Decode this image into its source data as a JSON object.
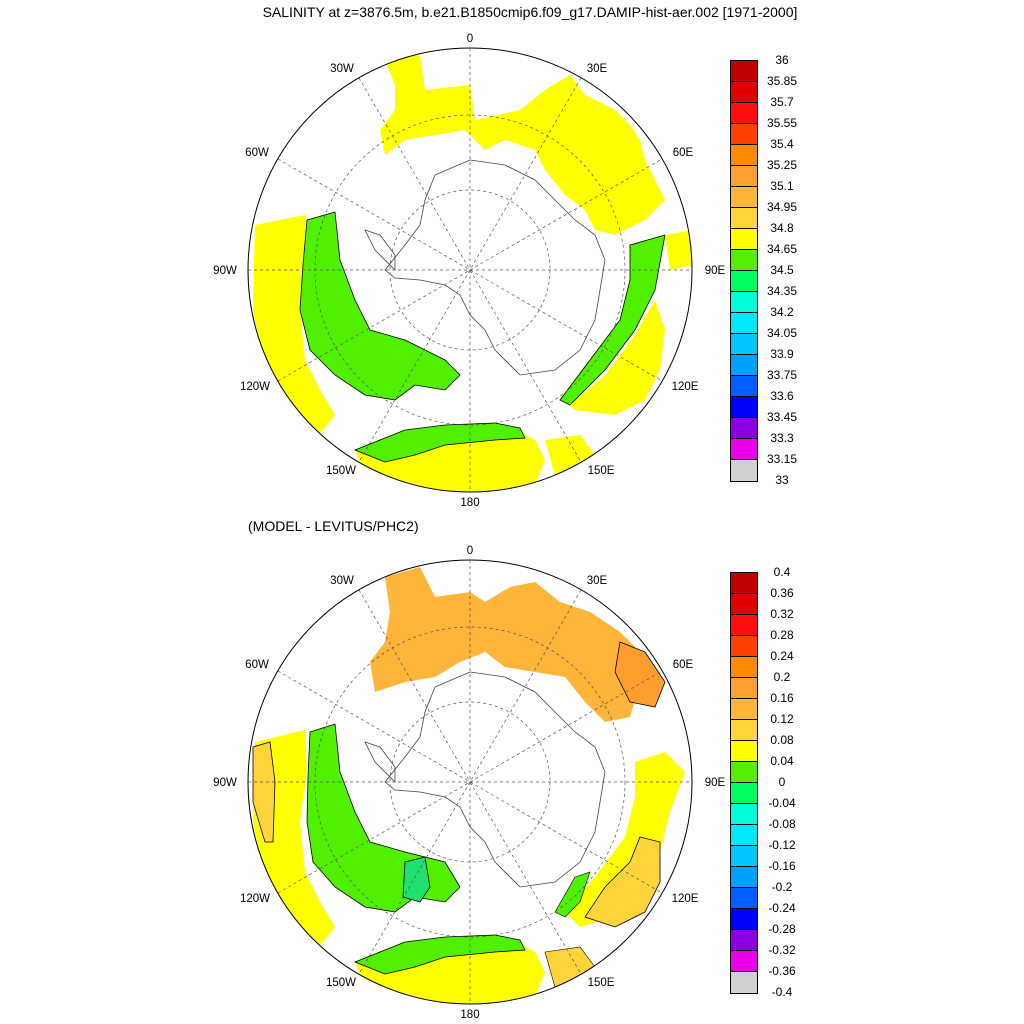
{
  "title": "SALINITY at z=3876.5m, b.e21.B1850cmip6.f09_g17.DAMIP-hist-aer.002 [1971-2000]",
  "subtitle": "(MODEL - LEVITUS/PHC2)",
  "lon_labels": {
    "north": "0",
    "ne30": "30E",
    "ne60": "60E",
    "east": "90E",
    "se120": "120E",
    "se150": "150E",
    "south": "180",
    "sw150": "150W",
    "sw120": "120W",
    "west": "90W",
    "nw60": "60W",
    "nw30": "30W"
  },
  "colors": {
    "yellow": "#ffff00",
    "light_orange": "#ffb43a",
    "orange": "#ff9e2e",
    "gold": "#ffd43a",
    "green": "#50f000",
    "teal_green": "#20e070"
  },
  "chart_data": [
    {
      "type": "heatmap",
      "projection": "south polar stereographic",
      "colorbar_labels": [
        "36",
        "35.85",
        "35.7",
        "35.55",
        "35.4",
        "35.25",
        "35.1",
        "34.95",
        "34.8",
        "34.65",
        "34.5",
        "34.35",
        "34.2",
        "34.05",
        "33.9",
        "33.75",
        "33.6",
        "33.45",
        "33.3",
        "33.15",
        "33"
      ],
      "colorbar_colors": [
        "#c00000",
        "#e00000",
        "#ff1010",
        "#ff4000",
        "#ff8a00",
        "#ffa030",
        "#ffb43a",
        "#ffd43a",
        "#ffff00",
        "#50f000",
        "#00ff60",
        "#00ffd8",
        "#00e8ff",
        "#00c8ff",
        "#00a0ff",
        "#0060ff",
        "#0000ff",
        "#8a00e0",
        "#e800e8",
        "#d0d0d0",
        "#707070"
      ]
    },
    {
      "type": "heatmap",
      "projection": "south polar stereographic",
      "colorbar_labels": [
        "0.4",
        "0.36",
        "0.32",
        "0.28",
        "0.24",
        "0.2",
        "0.16",
        "0.12",
        "0.08",
        "0.04",
        "0",
        "-0.04",
        "-0.08",
        "-0.12",
        "-0.16",
        "-0.2",
        "-0.24",
        "-0.28",
        "-0.32",
        "-0.36",
        "-0.4"
      ],
      "colorbar_colors": [
        "#c00000",
        "#e00000",
        "#ff1010",
        "#ff4000",
        "#ff8a00",
        "#ffa030",
        "#ffb43a",
        "#ffd43a",
        "#ffff00",
        "#50f000",
        "#00ff60",
        "#00ffd8",
        "#00e8ff",
        "#00c8ff",
        "#00a0ff",
        "#0060ff",
        "#0000ff",
        "#8a00e0",
        "#e800e8",
        "#d0d0d0",
        "#707070"
      ]
    }
  ]
}
